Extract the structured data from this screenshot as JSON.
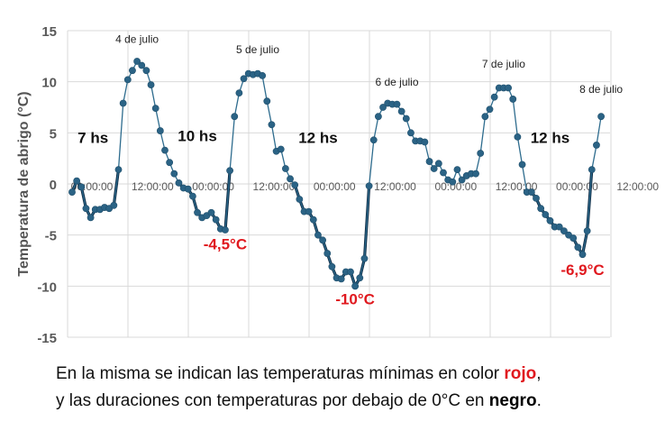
{
  "chart_data": {
    "type": "line",
    "title": "",
    "xlabel": "",
    "ylabel": "Temperatura de abrigo (°C)",
    "ylim": [
      -15,
      15
    ],
    "y_ticks": [
      15,
      10,
      5,
      0,
      -5,
      -10,
      -15
    ],
    "x_tick_labels": [
      "00:00:00",
      "12:00:00",
      "00:00:00",
      "12:00:00",
      "00:00:00",
      "12:00:00",
      "00:00:00",
      "12:00:00",
      "00:00:00",
      "12:00:00"
    ],
    "x_unit": "hours since start of series",
    "grid": true,
    "colors": {
      "line": "#2e6c8e",
      "marker": "#2b6385",
      "below_zero": "#0d2b45",
      "minimum_label": "#e0191f"
    },
    "series": [
      {
        "values": [
          [
            0,
            -0.8
          ],
          [
            1,
            0.3
          ],
          [
            2,
            -0.3
          ],
          [
            3,
            -2.4
          ],
          [
            4,
            -3.3
          ],
          [
            5,
            -2.5
          ],
          [
            6,
            -2.5
          ],
          [
            7,
            -2.3
          ],
          [
            8,
            -2.4
          ],
          [
            9,
            -2.1
          ],
          [
            10,
            1.4
          ],
          [
            11,
            7.9
          ],
          [
            12,
            10.2
          ],
          [
            13,
            11.1
          ],
          [
            14,
            12.0
          ],
          [
            15,
            11.6
          ],
          [
            16,
            11.1
          ],
          [
            17,
            9.7
          ],
          [
            18,
            7.4
          ],
          [
            19,
            5.2
          ],
          [
            20,
            3.3
          ],
          [
            21,
            2.1
          ],
          [
            22,
            1.0
          ],
          [
            23,
            0.1
          ],
          [
            24,
            -0.4
          ],
          [
            25,
            -0.5
          ],
          [
            26,
            -1.2
          ],
          [
            27,
            -2.8
          ],
          [
            28,
            -3.3
          ],
          [
            29,
            -3.1
          ],
          [
            30,
            -2.8
          ],
          [
            31,
            -3.5
          ],
          [
            32,
            -4.4
          ],
          [
            33,
            -4.5
          ],
          [
            34,
            1.3
          ],
          [
            35,
            6.6
          ],
          [
            36,
            8.9
          ],
          [
            37,
            10.3
          ],
          [
            38,
            10.8
          ],
          [
            39,
            10.7
          ],
          [
            40,
            10.8
          ],
          [
            41,
            10.6
          ],
          [
            42,
            8.1
          ],
          [
            43,
            5.8
          ],
          [
            44,
            3.2
          ],
          [
            45,
            3.4
          ],
          [
            46,
            1.5
          ],
          [
            47,
            0.5
          ],
          [
            48,
            -0.1
          ],
          [
            49,
            -1.5
          ],
          [
            50,
            -2.7
          ],
          [
            51,
            -2.7
          ],
          [
            52,
            -3.5
          ],
          [
            53,
            -5.0
          ],
          [
            54,
            -5.5
          ],
          [
            55,
            -6.8
          ],
          [
            56,
            -8.1
          ],
          [
            57,
            -9.2
          ],
          [
            58,
            -9.3
          ],
          [
            59,
            -8.6
          ],
          [
            60,
            -8.6
          ],
          [
            61,
            -10.0
          ],
          [
            62,
            -9.2
          ],
          [
            63,
            -7.3
          ],
          [
            64,
            -0.2
          ],
          [
            65,
            4.3
          ],
          [
            66,
            6.6
          ],
          [
            67,
            7.5
          ],
          [
            68,
            7.9
          ],
          [
            69,
            7.8
          ],
          [
            70,
            7.8
          ],
          [
            71,
            7.1
          ],
          [
            72,
            6.4
          ],
          [
            73,
            5.0
          ],
          [
            74,
            4.2
          ],
          [
            75,
            4.2
          ],
          [
            76,
            4.1
          ],
          [
            77,
            2.2
          ],
          [
            78,
            1.5
          ],
          [
            79,
            2.0
          ],
          [
            80,
            1.1
          ],
          [
            81,
            0.4
          ],
          [
            82,
            0.2
          ],
          [
            83,
            1.4
          ],
          [
            84,
            0.4
          ],
          [
            85,
            0.8
          ],
          [
            86,
            1.0
          ],
          [
            87,
            1.0
          ],
          [
            88,
            3.0
          ],
          [
            89,
            6.6
          ],
          [
            90,
            7.3
          ],
          [
            91,
            8.5
          ],
          [
            92,
            9.4
          ],
          [
            93,
            9.4
          ],
          [
            94,
            9.4
          ],
          [
            95,
            8.3
          ],
          [
            96,
            4.6
          ],
          [
            97,
            1.9
          ],
          [
            98,
            -0.8
          ],
          [
            99,
            -0.8
          ],
          [
            100,
            -1.4
          ],
          [
            101,
            -2.4
          ],
          [
            102,
            -3.0
          ],
          [
            103,
            -3.6
          ],
          [
            104,
            -4.2
          ],
          [
            105,
            -4.2
          ],
          [
            106,
            -4.6
          ],
          [
            107,
            -5.0
          ],
          [
            108,
            -5.3
          ],
          [
            109,
            -6.2
          ],
          [
            110,
            -6.9
          ],
          [
            111,
            -4.6
          ],
          [
            112,
            1.4
          ],
          [
            113,
            3.8
          ],
          [
            114,
            6.6
          ]
        ]
      }
    ],
    "below_zero_segments": [
      [
        0,
        10
      ],
      [
        23,
        34
      ],
      [
        48,
        64
      ],
      [
        98,
        112
      ]
    ],
    "day_labels": [
      {
        "text": "4 de julio",
        "x": 14,
        "y": 13.8
      },
      {
        "text": "5 de julio",
        "x": 40,
        "y": 12.8
      },
      {
        "text": "6 de julio",
        "x": 70,
        "y": 9.6
      },
      {
        "text": "7 de julio",
        "x": 93,
        "y": 11.4
      },
      {
        "text": "8 de julio",
        "x": 114,
        "y": 8.9
      }
    ],
    "duration_labels": [
      {
        "text": "7 hs",
        "x": 4.5,
        "y": 4.0
      },
      {
        "text": "10 hs",
        "x": 27,
        "y": 4.2
      },
      {
        "text": "12 hs",
        "x": 53,
        "y": 4.0
      },
      {
        "text": "12 hs",
        "x": 103,
        "y": 4.0
      }
    ],
    "minimum_labels": [
      {
        "text": "-4,5°C",
        "x": 33,
        "y": -6.4
      },
      {
        "text": "-10°C",
        "x": 61,
        "y": -11.8
      },
      {
        "text": "-6,9°C",
        "x": 110,
        "y": -8.9
      }
    ]
  },
  "caption": {
    "line1_prefix": "En la misma se indican las temperaturas mínimas en color ",
    "line1_highlight": "rojo",
    "line1_suffix": ",",
    "line2_prefix": "y las duraciones con temperaturas por debajo de 0°C en ",
    "line2_highlight": "negro",
    "line2_suffix": "."
  }
}
